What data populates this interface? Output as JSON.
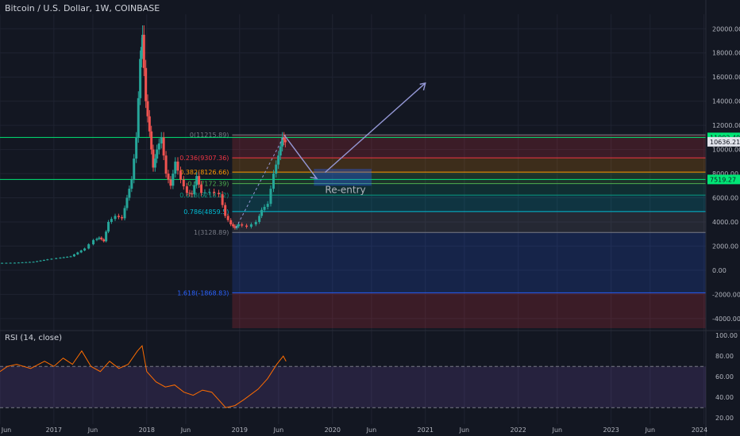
{
  "header": {
    "title": "Bitcoin / U.S. Dollar, 1W, COINBASE"
  },
  "rsi": {
    "title": "RSI (14, close)",
    "upper": 70,
    "lower": 30
  },
  "colors": {
    "background": "#131722",
    "grid": "#1f2331",
    "text": "#b2b5be",
    "up": "#26a69a",
    "down": "#ef5350",
    "rsi_line": "#ff6d00",
    "arrow": "#9598d6",
    "reentry_box": "#2962ff"
  },
  "annotation": {
    "reentry_label": "Re-entry"
  },
  "price_badges": [
    {
      "label": "11002.49",
      "value": 11002.49,
      "color": "#00e676",
      "text_color": "#131722"
    },
    {
      "label": "10636.21",
      "value": 10636.21,
      "color": "#e1e3eb",
      "text_color": "#131722"
    },
    {
      "label": "7519.27",
      "value": 7519.27,
      "color": "#00e676",
      "text_color": "#131722"
    }
  ],
  "fib_levels": [
    {
      "label": "0(11215.89)",
      "value": 11215.89,
      "color": "#787b86"
    },
    {
      "label": "0.236(9307.36)",
      "value": 9307.36,
      "color": "#f23645"
    },
    {
      "label": "0.382(8126.66)",
      "value": 8126.66,
      "color": "#ff9800"
    },
    {
      "label": "0.5(7172.39)",
      "value": 7172.39,
      "color": "#4caf50"
    },
    {
      "label": "0.618(6218.12)",
      "value": 6218.12,
      "color": "#089981"
    },
    {
      "label": "0.786(4859.5)",
      "value": 4859.5,
      "color": "#00bcd4"
    },
    {
      "label": "1(3128.89)",
      "value": 3128.89,
      "color": "#787b86"
    },
    {
      "label": "1.618(-1868.83)",
      "value": -1868.83,
      "color": "#2962ff"
    }
  ],
  "chart_data": {
    "type": "line",
    "title": "Bitcoin / U.S. Dollar, 1W, COINBASE",
    "ylim": [
      -4800,
      21200
    ],
    "y_ticks": [
      "20000.00",
      "18000.00",
      "16000.00",
      "14000.00",
      "12000.00",
      "10000.00",
      "8000.00",
      "6000.00",
      "4000.00",
      "2000.00",
      "0.00",
      "-2000.00",
      "-4000.00"
    ],
    "y_tick_values": [
      20000,
      18000,
      16000,
      14000,
      12000,
      10000,
      8000,
      6000,
      4000,
      2000,
      0,
      -2000,
      -4000
    ],
    "x_ticks": [
      "Jun",
      "2017",
      "Jun",
      "2018",
      "Jun",
      "2019",
      "Jun",
      "2020",
      "Jun",
      "2021",
      "Jun",
      "2022",
      "Jun",
      "2023",
      "Jun",
      "2024"
    ],
    "x_tick_values": [
      2016.42,
      2017.0,
      2017.42,
      2018.0,
      2018.42,
      2019.0,
      2019.42,
      2020.0,
      2020.42,
      2021.0,
      2021.42,
      2022.0,
      2022.42,
      2023.0,
      2023.42,
      2024.0
    ],
    "xlim": [
      2016.42,
      2024.02
    ],
    "grid": true,
    "series": [
      {
        "values": [
          [
            2016.42,
            600
          ],
          [
            2016.6,
            620
          ],
          [
            2016.8,
            700
          ],
          [
            2016.95,
            900
          ],
          [
            2017.05,
            1000
          ],
          [
            2017.2,
            1150
          ],
          [
            2017.35,
            1800
          ],
          [
            2017.45,
            2500
          ],
          [
            2017.5,
            2700
          ],
          [
            2017.55,
            2400
          ],
          [
            2017.6,
            4000
          ],
          [
            2017.68,
            4500
          ],
          [
            2017.75,
            4300
          ],
          [
            2017.8,
            6000
          ],
          [
            2017.85,
            7500
          ],
          [
            2017.9,
            11000
          ],
          [
            2017.94,
            17500
          ],
          [
            2017.96,
            19500
          ],
          [
            2018.0,
            14000
          ],
          [
            2018.04,
            11500
          ],
          [
            2018.08,
            8500
          ],
          [
            2018.12,
            10000
          ],
          [
            2018.17,
            11000
          ],
          [
            2018.22,
            8000
          ],
          [
            2018.27,
            7000
          ],
          [
            2018.32,
            9000
          ],
          [
            2018.38,
            7500
          ],
          [
            2018.45,
            6400
          ],
          [
            2018.5,
            6300
          ],
          [
            2018.55,
            7800
          ],
          [
            2018.6,
            6400
          ],
          [
            2018.7,
            6500
          ],
          [
            2018.8,
            6300
          ],
          [
            2018.86,
            4500
          ],
          [
            2018.92,
            3800
          ],
          [
            2018.96,
            3500
          ],
          [
            2019.0,
            3800
          ],
          [
            2019.1,
            3600
          ],
          [
            2019.2,
            4000
          ],
          [
            2019.25,
            5000
          ],
          [
            2019.32,
            5500
          ],
          [
            2019.38,
            8000
          ],
          [
            2019.43,
            9500
          ],
          [
            2019.47,
            11000
          ],
          [
            2019.5,
            10600
          ]
        ]
      },
      {
        "name": "RSI (14, close)",
        "values": [
          [
            2016.42,
            65
          ],
          [
            2016.5,
            70
          ],
          [
            2016.6,
            72
          ],
          [
            2016.75,
            68
          ],
          [
            2016.9,
            75
          ],
          [
            2017.0,
            70
          ],
          [
            2017.1,
            78
          ],
          [
            2017.2,
            72
          ],
          [
            2017.3,
            85
          ],
          [
            2017.4,
            70
          ],
          [
            2017.5,
            65
          ],
          [
            2017.6,
            75
          ],
          [
            2017.7,
            68
          ],
          [
            2017.8,
            72
          ],
          [
            2017.9,
            85
          ],
          [
            2017.95,
            90
          ],
          [
            2018.0,
            65
          ],
          [
            2018.1,
            55
          ],
          [
            2018.2,
            50
          ],
          [
            2018.3,
            52
          ],
          [
            2018.4,
            45
          ],
          [
            2018.5,
            42
          ],
          [
            2018.6,
            47
          ],
          [
            2018.7,
            45
          ],
          [
            2018.85,
            30
          ],
          [
            2018.95,
            32
          ],
          [
            2019.05,
            38
          ],
          [
            2019.2,
            48
          ],
          [
            2019.3,
            58
          ],
          [
            2019.4,
            72
          ],
          [
            2019.47,
            80
          ],
          [
            2019.5,
            75
          ]
        ]
      }
    ],
    "rsi_ylim": [
      14,
      104
    ],
    "rsi_ticks": [
      "100.00",
      "80.00",
      "60.00",
      "40.00",
      "20.00"
    ],
    "rsi_tick_values": [
      100,
      80,
      60,
      40,
      20
    ]
  }
}
